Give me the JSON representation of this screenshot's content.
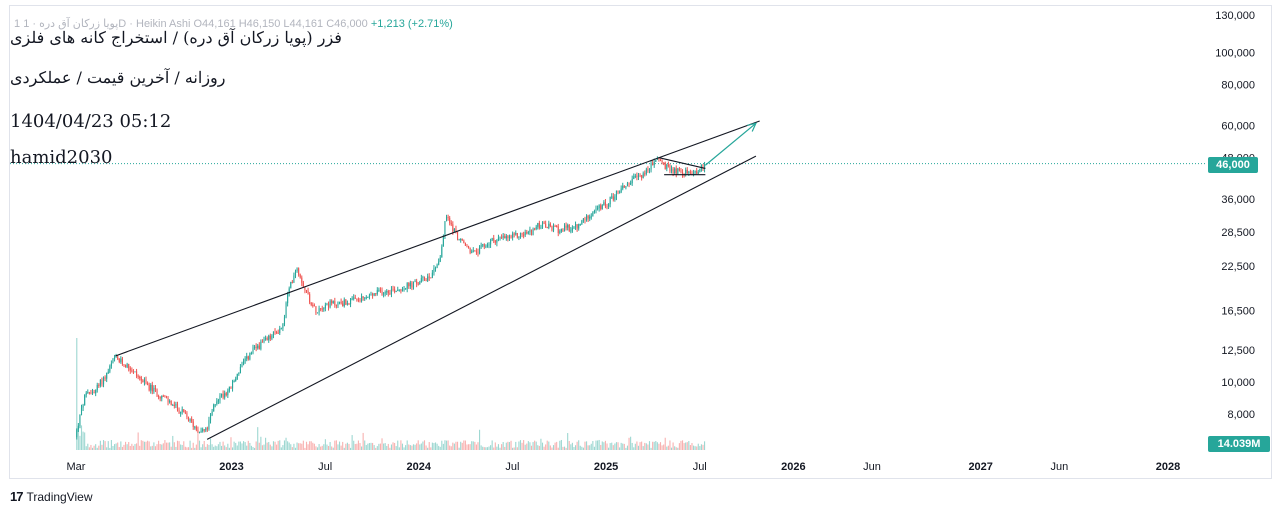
{
  "header": {
    "legend_prefix": "1  پویا زرکان آق دره · 1D · Heikin Ashi",
    "ohlc": "O44,161  H46,150  L44,161  C46,000",
    "change": "+1,213 (+2.71%)"
  },
  "annotations": {
    "title": "فزر (پویا زرکان آق دره) / استخراج کانه های فلزی",
    "subtitle": "روزانه / آخرین قیمت / عملکردی",
    "datetime": "1404/04/23 05:12",
    "author": "hamid2030"
  },
  "last_price_label": "46,000",
  "volume_label": "14.039M",
  "branding": {
    "logo": "17",
    "name": "TradingView"
  },
  "colors": {
    "up": "#26a69a",
    "down": "#ef5350",
    "line": "#131722",
    "arrow": "#26a69a",
    "price_line": "#26a69a"
  },
  "chart_data": {
    "type": "candlestick",
    "scale": "log",
    "title": "فزر (پویا زرکان آق دره) / استخراج کانه های فلزی",
    "y_ticks": [
      8000,
      10000,
      12500,
      16500,
      22500,
      28500,
      36000,
      48000,
      60000,
      80000,
      100000,
      130000
    ],
    "y_tick_labels": [
      "8,000",
      "10,000",
      "12,500",
      "16,500",
      "22,500",
      "28,500",
      "36,000",
      "48,000",
      "60,000",
      "80,000",
      "100,000",
      "130,000"
    ],
    "ylim": [
      6500,
      130000
    ],
    "x_range": [
      "2022-03",
      "2028-02"
    ],
    "x_ticks": [
      {
        "t": 2022.17,
        "label": "Mar",
        "year": false
      },
      {
        "t": 2023.0,
        "label": "2023",
        "year": true
      },
      {
        "t": 2023.5,
        "label": "Jul",
        "year": false
      },
      {
        "t": 2024.0,
        "label": "2024",
        "year": true
      },
      {
        "t": 2024.5,
        "label": "Jul",
        "year": false
      },
      {
        "t": 2025.0,
        "label": "2025",
        "year": true
      },
      {
        "t": 2025.5,
        "label": "Jul",
        "year": false
      },
      {
        "t": 2026.0,
        "label": "2026",
        "year": true
      },
      {
        "t": 2026.42,
        "label": "Jun",
        "year": false
      },
      {
        "t": 2027.0,
        "label": "2027",
        "year": true
      },
      {
        "t": 2027.42,
        "label": "Jun",
        "year": false
      },
      {
        "t": 2028.0,
        "label": "2028",
        "year": true
      }
    ],
    "price_path": [
      {
        "t": 2022.17,
        "p": 6800
      },
      {
        "t": 2022.22,
        "p": 9000
      },
      {
        "t": 2022.28,
        "p": 9500
      },
      {
        "t": 2022.34,
        "p": 10600
      },
      {
        "t": 2022.38,
        "p": 11800
      },
      {
        "t": 2022.45,
        "p": 11200
      },
      {
        "t": 2022.55,
        "p": 9800
      },
      {
        "t": 2022.65,
        "p": 8900
      },
      {
        "t": 2022.75,
        "p": 8000
      },
      {
        "t": 2022.82,
        "p": 7200
      },
      {
        "t": 2022.87,
        "p": 7100
      },
      {
        "t": 2022.92,
        "p": 8800
      },
      {
        "t": 2023.0,
        "p": 9600
      },
      {
        "t": 2023.05,
        "p": 11000
      },
      {
        "t": 2023.12,
        "p": 12500
      },
      {
        "t": 2023.2,
        "p": 13500
      },
      {
        "t": 2023.28,
        "p": 14800
      },
      {
        "t": 2023.3,
        "p": 18000
      },
      {
        "t": 2023.35,
        "p": 22500
      },
      {
        "t": 2023.4,
        "p": 19000
      },
      {
        "t": 2023.45,
        "p": 16500
      },
      {
        "t": 2023.5,
        "p": 17200
      },
      {
        "t": 2023.6,
        "p": 17400
      },
      {
        "t": 2023.7,
        "p": 17800
      },
      {
        "t": 2023.8,
        "p": 18800
      },
      {
        "t": 2023.9,
        "p": 19200
      },
      {
        "t": 2024.0,
        "p": 20000
      },
      {
        "t": 2024.07,
        "p": 21200
      },
      {
        "t": 2024.12,
        "p": 24000
      },
      {
        "t": 2024.15,
        "p": 32000
      },
      {
        "t": 2024.22,
        "p": 27000
      },
      {
        "t": 2024.3,
        "p": 24500
      },
      {
        "t": 2024.4,
        "p": 27000
      },
      {
        "t": 2024.5,
        "p": 27500
      },
      {
        "t": 2024.6,
        "p": 28500
      },
      {
        "t": 2024.65,
        "p": 30000
      },
      {
        "t": 2024.75,
        "p": 29000
      },
      {
        "t": 2024.85,
        "p": 29500
      },
      {
        "t": 2024.92,
        "p": 32500
      },
      {
        "t": 2025.0,
        "p": 34500
      },
      {
        "t": 2025.08,
        "p": 38500
      },
      {
        "t": 2025.16,
        "p": 41500
      },
      {
        "t": 2025.22,
        "p": 43500
      },
      {
        "t": 2025.28,
        "p": 48000
      },
      {
        "t": 2025.33,
        "p": 44500
      },
      {
        "t": 2025.4,
        "p": 43500
      },
      {
        "t": 2025.45,
        "p": 43000
      },
      {
        "t": 2025.5,
        "p": 44000
      },
      {
        "t": 2025.53,
        "p": 46000
      }
    ],
    "channel_lines": [
      {
        "name": "upper-channel-line",
        "from": {
          "t": 2022.38,
          "p": 12000
        },
        "to": {
          "t": 2025.82,
          "p": 62000
        }
      },
      {
        "name": "lower-channel-line",
        "from": {
          "t": 2022.87,
          "p": 6700
        },
        "to": {
          "t": 2025.8,
          "p": 48500
        }
      },
      {
        "name": "triangle-top",
        "from": {
          "t": 2025.28,
          "p": 48000
        },
        "to": {
          "t": 2025.53,
          "p": 44500
        }
      },
      {
        "name": "triangle-bottom",
        "from": {
          "t": 2025.31,
          "p": 42600
        },
        "to": {
          "t": 2025.53,
          "p": 42600
        }
      }
    ],
    "projection_arrow": {
      "from": {
        "t": 2025.53,
        "p": 45500
      },
      "to": {
        "t": 2025.8,
        "p": 61000
      }
    },
    "last_price": 46000,
    "volume_last": "14.039M"
  }
}
